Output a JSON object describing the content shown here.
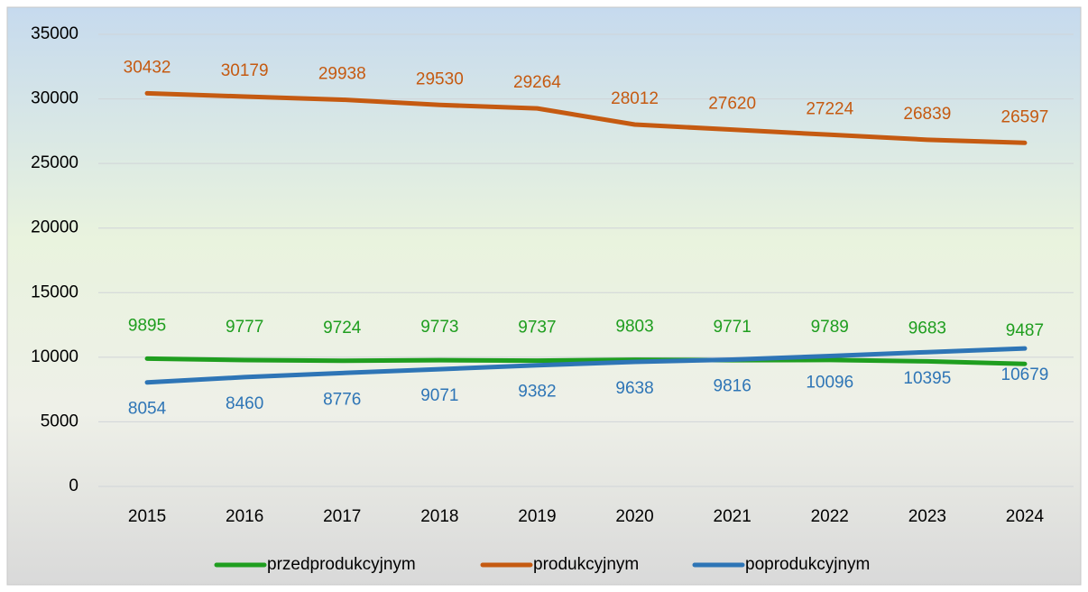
{
  "chart_data": {
    "type": "line",
    "categories": [
      "2015",
      "2016",
      "2017",
      "2018",
      "2019",
      "2020",
      "2021",
      "2022",
      "2023",
      "2024"
    ],
    "series": [
      {
        "name": "przedprodukcyjnym",
        "color": "#1f9e1f",
        "values": [
          9895,
          9777,
          9724,
          9773,
          9737,
          9803,
          9771,
          9789,
          9683,
          9487
        ]
      },
      {
        "name": "produkcyjnym",
        "color": "#c55a11",
        "values": [
          30432,
          30179,
          29938,
          29530,
          29264,
          28012,
          27620,
          27224,
          26839,
          26597
        ]
      },
      {
        "name": "poprodukcyjnym",
        "color": "#2e75b6",
        "values": [
          8054,
          8460,
          8776,
          9071,
          9382,
          9638,
          9816,
          10096,
          10395,
          10679
        ]
      }
    ],
    "ylim": [
      0,
      35000
    ],
    "yticks": [
      0,
      5000,
      10000,
      15000,
      20000,
      25000,
      30000,
      35000
    ],
    "grid": true,
    "legend": "bottom"
  }
}
